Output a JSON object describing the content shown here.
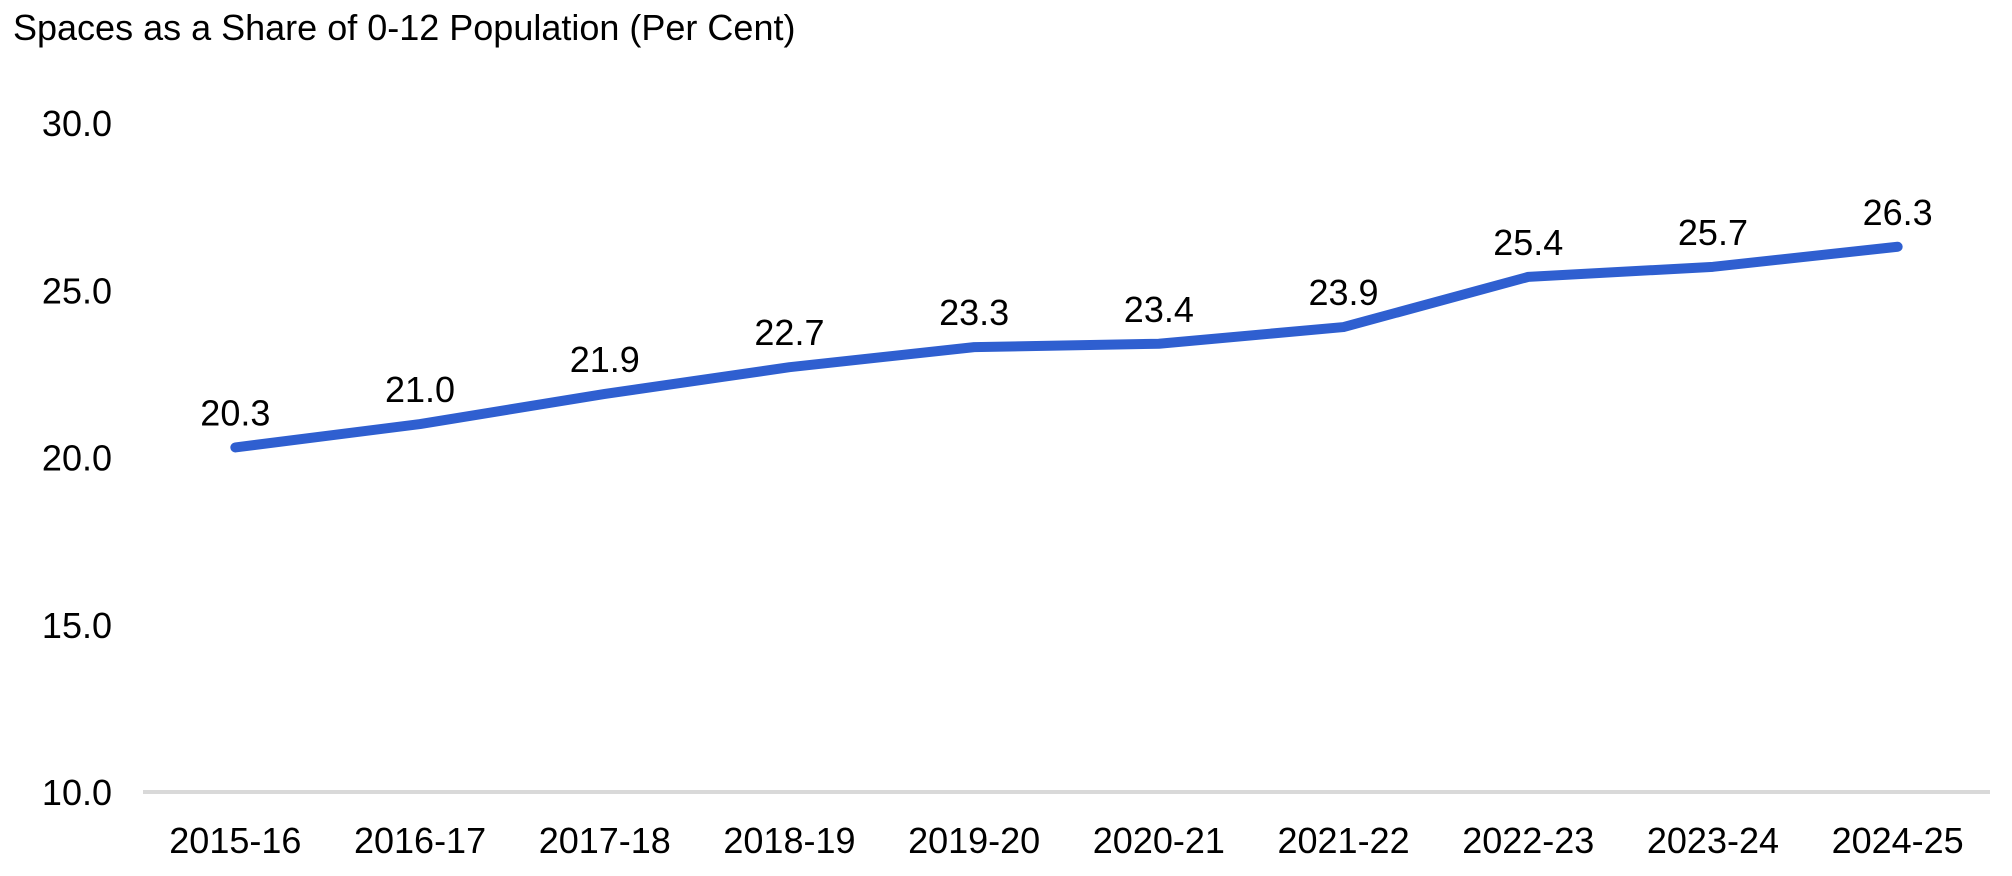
{
  "chart_data": {
    "type": "line",
    "title": "Spaces as a Share of 0-12 Population (Per Cent)",
    "categories": [
      "2015-16",
      "2016-17",
      "2017-18",
      "2018-19",
      "2019-20",
      "2020-21",
      "2021-22",
      "2022-23",
      "2023-24",
      "2024-25"
    ],
    "series": [
      {
        "name": "Spaces as a share of 0-12 population",
        "values": [
          20.3,
          21.0,
          21.9,
          22.7,
          23.3,
          23.4,
          23.9,
          25.4,
          25.7,
          26.3
        ]
      }
    ],
    "data_labels": [
      "20.3",
      "21.0",
      "21.9",
      "22.7",
      "23.3",
      "23.4",
      "23.9",
      "25.4",
      "25.7",
      "26.3"
    ],
    "xlabel": "",
    "ylabel": "",
    "ylim": [
      10.0,
      30.0
    ],
    "ytick_labels": [
      "30.0",
      "25.0",
      "20.0",
      "15.0",
      "10.0"
    ],
    "ytick_values": [
      30,
      25,
      20,
      15,
      10
    ],
    "grid": "off",
    "legend": "none",
    "line_style": "solid",
    "markers": "none",
    "colors": {
      "line": "#2F5FD0",
      "axis_line": "#D9D9D9",
      "text": "#000000",
      "background": "#FFFFFF"
    }
  }
}
